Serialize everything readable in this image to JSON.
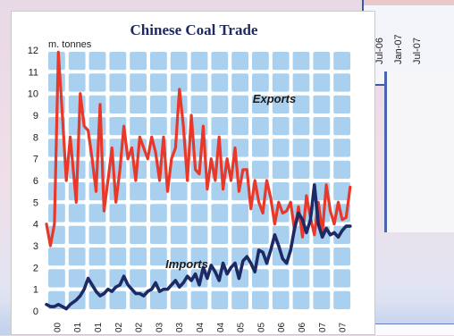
{
  "background": {
    "dates": [
      "Jul-06",
      "Jan-07",
      "Jul-07"
    ]
  },
  "chart_data": {
    "type": "line",
    "title": "Chinese Coal Trade",
    "unit_label": "m. tonnes",
    "ylim": [
      0,
      12
    ],
    "y_ticks": [
      0,
      1,
      2,
      3,
      4,
      5,
      6,
      7,
      8,
      9,
      10,
      11,
      12
    ],
    "x_start": 2000,
    "x_end": 2007.7,
    "x_ticks": [
      "00",
      "01",
      "01",
      "02",
      "02",
      "03",
      "03",
      "04",
      "04",
      "05",
      "05",
      "06",
      "06",
      "07",
      "07"
    ],
    "grid": true,
    "colors": {
      "exports": "#e8382a",
      "imports": "#1d2a66",
      "grid_cell": "#a9d1ef"
    },
    "series": [
      {
        "name": "Exports",
        "x": [
          2000.0,
          2000.1,
          2000.2,
          2000.3,
          2000.4,
          2000.5,
          2000.6,
          2000.75,
          2000.85,
          2000.95,
          2001.05,
          2001.15,
          2001.25,
          2001.35,
          2001.45,
          2001.55,
          2001.65,
          2001.75,
          2001.85,
          2001.95,
          2002.05,
          2002.15,
          2002.25,
          2002.35,
          2002.45,
          2002.55,
          2002.65,
          2002.75,
          2002.85,
          2002.95,
          2003.05,
          2003.15,
          2003.25,
          2003.35,
          2003.45,
          2003.55,
          2003.65,
          2003.75,
          2003.85,
          2003.95,
          2004.05,
          2004.15,
          2004.25,
          2004.35,
          2004.45,
          2004.55,
          2004.65,
          2004.75,
          2004.85,
          2004.95,
          2005.05,
          2005.15,
          2005.25,
          2005.35,
          2005.45,
          2005.55,
          2005.65,
          2005.75,
          2005.85,
          2005.95,
          2006.05,
          2006.15,
          2006.25,
          2006.35,
          2006.45,
          2006.55,
          2006.65,
          2006.75,
          2006.85,
          2006.95,
          2007.05,
          2007.15,
          2007.25,
          2007.35,
          2007.45,
          2007.55,
          2007.65
        ],
        "values": [
          4.0,
          3.0,
          4.0,
          11.9,
          9.0,
          6.0,
          8.0,
          5.0,
          10.0,
          8.5,
          8.3,
          7.0,
          5.5,
          9.5,
          4.6,
          6.0,
          7.5,
          5.0,
          6.5,
          8.5,
          7.0,
          7.5,
          6.0,
          8.0,
          7.5,
          7.0,
          8.0,
          7.3,
          6.0,
          8.0,
          5.5,
          7.0,
          7.5,
          10.2,
          8.5,
          6.0,
          9.0,
          6.5,
          6.3,
          8.5,
          5.6,
          7.0,
          6.0,
          8.0,
          5.6,
          7.0,
          6.0,
          7.5,
          5.5,
          6.5,
          6.5,
          4.7,
          6.0,
          5.0,
          4.5,
          6.0,
          5.2,
          4.0,
          5.0,
          4.5,
          4.6,
          5.0,
          3.7,
          4.8,
          3.4,
          5.3,
          4.3,
          3.5,
          5.0,
          3.6,
          5.8,
          4.6,
          4.0,
          5.0,
          4.2,
          4.3,
          5.7
        ]
      },
      {
        "name": "Imports",
        "x": [
          2000.0,
          2000.1,
          2000.2,
          2000.3,
          2000.4,
          2000.5,
          2000.6,
          2000.75,
          2000.85,
          2000.95,
          2001.05,
          2001.15,
          2001.25,
          2001.35,
          2001.45,
          2001.55,
          2001.65,
          2001.75,
          2001.85,
          2001.95,
          2002.05,
          2002.15,
          2002.25,
          2002.35,
          2002.45,
          2002.55,
          2002.65,
          2002.75,
          2002.85,
          2002.95,
          2003.05,
          2003.15,
          2003.25,
          2003.35,
          2003.45,
          2003.55,
          2003.65,
          2003.75,
          2003.85,
          2003.95,
          2004.05,
          2004.15,
          2004.25,
          2004.35,
          2004.45,
          2004.55,
          2004.65,
          2004.75,
          2004.85,
          2004.95,
          2005.05,
          2005.15,
          2005.25,
          2005.35,
          2005.45,
          2005.55,
          2005.65,
          2005.75,
          2005.85,
          2005.95,
          2006.05,
          2006.15,
          2006.25,
          2006.35,
          2006.45,
          2006.55,
          2006.65,
          2006.75,
          2006.85,
          2006.95,
          2007.05,
          2007.15,
          2007.25,
          2007.35,
          2007.45,
          2007.55,
          2007.65
        ],
        "values": [
          0.3,
          0.2,
          0.2,
          0.3,
          0.2,
          0.1,
          0.3,
          0.5,
          0.7,
          1.0,
          1.5,
          1.2,
          0.9,
          0.7,
          0.8,
          1.0,
          0.9,
          1.1,
          1.2,
          1.6,
          1.2,
          1.0,
          0.8,
          0.8,
          0.7,
          0.9,
          1.0,
          1.3,
          0.9,
          1.0,
          1.0,
          1.2,
          1.4,
          1.1,
          1.3,
          1.6,
          1.4,
          1.7,
          1.2,
          2.0,
          1.5,
          2.1,
          1.8,
          1.4,
          2.2,
          1.7,
          2.0,
          2.2,
          1.5,
          2.3,
          2.5,
          2.2,
          1.8,
          2.8,
          2.7,
          2.2,
          2.8,
          3.5,
          3.0,
          2.4,
          2.2,
          2.8,
          3.8,
          4.5,
          4.2,
          3.6,
          4.2,
          5.8,
          4.0,
          3.4,
          3.8,
          3.5,
          3.6,
          3.4,
          3.7,
          3.9,
          3.9
        ]
      }
    ]
  }
}
